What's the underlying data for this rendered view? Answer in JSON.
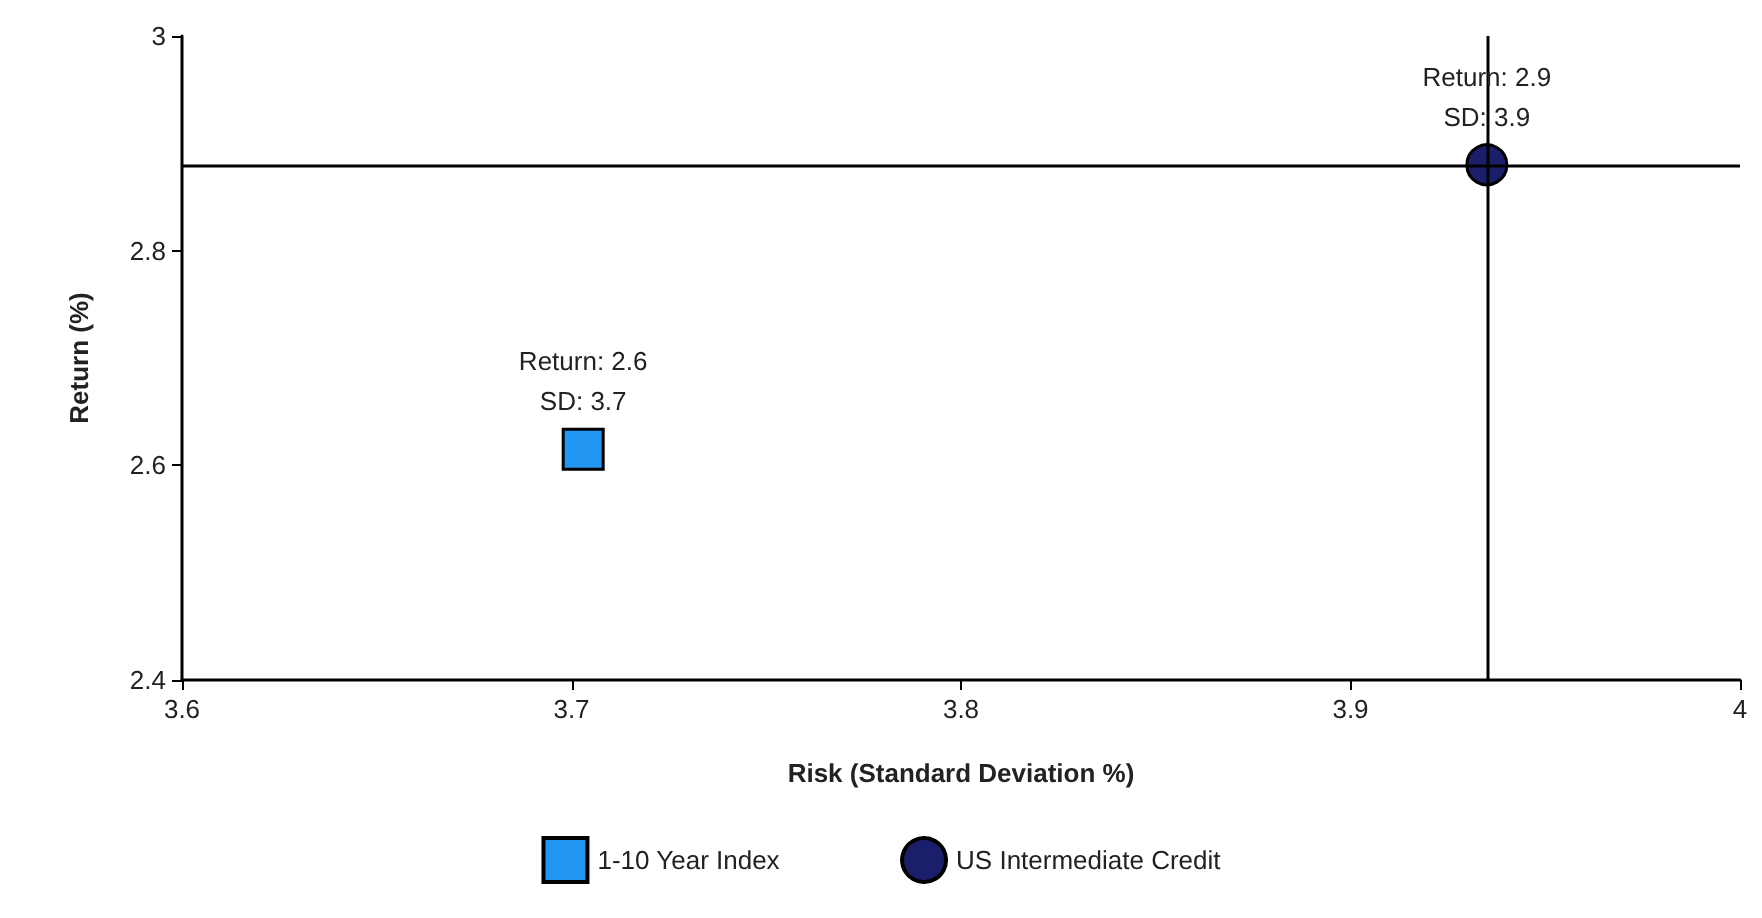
{
  "chart_data": {
    "type": "scatter",
    "xlabel": "Risk (Standard Deviation %)",
    "ylabel": "Return (%)",
    "series": [
      {
        "name": "1-10 Year Index",
        "color": "#2196f3",
        "marker": "square",
        "x": [
          3.703
        ],
        "values": [
          2.615
        ]
      },
      {
        "name": "US Intermediate Credit",
        "color": "#1b1f6b",
        "marker": "circle",
        "x": [
          3.935
        ],
        "values": [
          2.88
        ]
      }
    ],
    "xlim": [
      3.6,
      4.0
    ],
    "xticks": [
      3.6,
      3.7,
      3.8,
      3.9,
      4.0
    ],
    "ylim": [
      2.4,
      3.0
    ],
    "yticks": [
      2.4,
      2.6,
      2.8,
      3.0
    ],
    "ref_lines": [
      {
        "axis": "x",
        "value": 3.935,
        "color": "#000000"
      },
      {
        "axis": "y",
        "value": 2.88,
        "color": "#000000"
      }
    ],
    "annotations": [
      {
        "text": "Return: 2.6\nSD: 3.7",
        "x": 3.703,
        "y": 2.615
      },
      {
        "text": "Return: 2.9\nSD: 3.9",
        "x": 3.935,
        "y": 2.88
      }
    ],
    "grid": false,
    "legend": "bottom"
  }
}
